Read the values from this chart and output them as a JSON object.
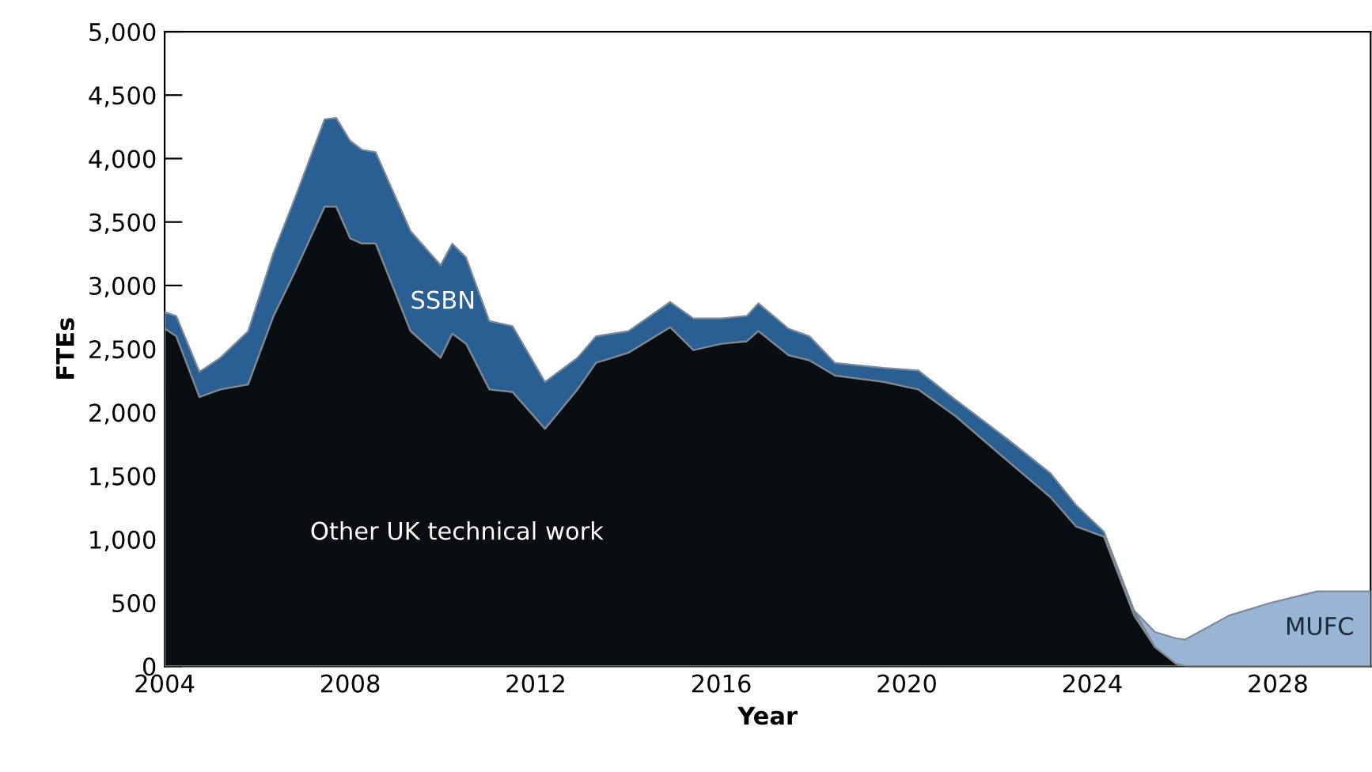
{
  "chart_data": {
    "type": "area",
    "stacked": true,
    "xlabel": "Year",
    "ylabel": "FTEs",
    "x": [
      2004,
      2004.25,
      2004.75,
      2005.2,
      2005.8,
      2006.35,
      2006.8,
      2007.45,
      2007.7,
      2008,
      2008.25,
      2008.55,
      2009.3,
      2009.95,
      2010.2,
      2010.5,
      2011,
      2011.5,
      2012.2,
      2012.9,
      2013.3,
      2014,
      2014.9,
      2015.4,
      2016,
      2016.55,
      2016.8,
      2017.45,
      2017.9,
      2018.45,
      2019.5,
      2020.25,
      2021.05,
      2022.1,
      2023.1,
      2023.65,
      2024.25,
      2024.9,
      2025.35,
      2025.8,
      2026,
      2026.95,
      2027.85,
      2028.85,
      2030
    ],
    "series": [
      {
        "name": "Other UK technical work",
        "color": "#0a0e12",
        "values": [
          2660,
          2600,
          2120,
          2180,
          2220,
          2760,
          3100,
          3620,
          3620,
          3370,
          3330,
          3330,
          2640,
          2430,
          2620,
          2540,
          2180,
          2160,
          1870,
          2180,
          2390,
          2470,
          2670,
          2490,
          2540,
          2560,
          2640,
          2450,
          2410,
          2290,
          2240,
          2180,
          1970,
          1640,
          1330,
          1100,
          1020,
          400,
          150,
          20,
          0,
          0,
          0,
          0,
          0
        ]
      },
      {
        "name": "SSBN",
        "color": "#2a5f93",
        "values": [
          130,
          160,
          200,
          250,
          420,
          500,
          580,
          690,
          700,
          770,
          740,
          720,
          790,
          730,
          710,
          680,
          540,
          520,
          370,
          250,
          210,
          170,
          200,
          250,
          200,
          200,
          220,
          210,
          190,
          100,
          110,
          150,
          130,
          170,
          190,
          170,
          40,
          40,
          0,
          0,
          0,
          0,
          0,
          0,
          0
        ]
      },
      {
        "name": "MUFC",
        "color": "#9ab5d3",
        "values": [
          null,
          null,
          null,
          null,
          null,
          null,
          null,
          null,
          null,
          null,
          null,
          null,
          null,
          null,
          null,
          null,
          null,
          null,
          null,
          null,
          null,
          null,
          null,
          null,
          null,
          null,
          null,
          null,
          null,
          null,
          null,
          null,
          null,
          null,
          null,
          null,
          null,
          0,
          120,
          200,
          210,
          400,
          500,
          590,
          590
        ]
      }
    ],
    "xlim": [
      2004,
      2030
    ],
    "xticks": [
      2004,
      2008,
      2012,
      2016,
      2020,
      2024,
      2028
    ],
    "ylim": [
      0,
      5000
    ],
    "yticks": [
      0,
      500,
      {
        "value": 1000,
        "label": "1,000"
      },
      {
        "value": 1500,
        "label": "1,500"
      },
      {
        "value": 2000,
        "label": "2,000"
      },
      {
        "value": 2500,
        "label": "2,500"
      },
      {
        "value": 3000,
        "label": "3,000"
      },
      {
        "value": 3500,
        "label": "3,500"
      },
      {
        "value": 4000,
        "label": "4,000"
      },
      {
        "value": 4500,
        "label": "4,500"
      },
      {
        "value": 5000,
        "label": "5,000"
      }
    ],
    "grid": false,
    "legend": false
  }
}
